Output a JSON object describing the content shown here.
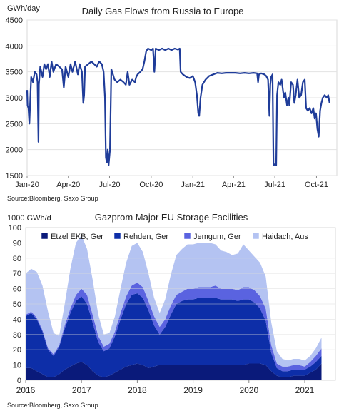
{
  "chart_data": [
    {
      "type": "line",
      "title": "Daily Gas Flows from Russia  to Europe",
      "ylabel": "GWh/day",
      "source": "Source:Bloomberg,  Saxo Group",
      "ylim": [
        1500,
        4500
      ],
      "yticks": [
        "1500",
        "2000",
        "2500",
        "3000",
        "3500",
        "4000",
        "4500"
      ],
      "xlim": [
        "2020-01-01",
        "2021-11-15"
      ],
      "xticks": [
        {
          "date": "2020-01-01",
          "label": "Jan-20"
        },
        {
          "date": "2020-04-01",
          "label": "Apr-20"
        },
        {
          "date": "2020-07-01",
          "label": "Jul-20"
        },
        {
          "date": "2020-10-01",
          "label": "Oct-20"
        },
        {
          "date": "2021-01-01",
          "label": "Jan-21"
        },
        {
          "date": "2021-04-01",
          "label": "Apr-21"
        },
        {
          "date": "2021-07-01",
          "label": "Jul-21"
        },
        {
          "date": "2021-10-01",
          "label": "Oct-21"
        }
      ],
      "grid": true,
      "color": "#1f3c99",
      "points": [
        [
          "2020-01-01",
          3150
        ],
        [
          "2020-01-02",
          2850
        ],
        [
          "2020-01-04",
          2800
        ],
        [
          "2020-01-06",
          2500
        ],
        [
          "2020-01-08",
          2950
        ],
        [
          "2020-01-10",
          3400
        ],
        [
          "2020-01-14",
          3300
        ],
        [
          "2020-01-18",
          3500
        ],
        [
          "2020-01-22",
          3450
        ],
        [
          "2020-01-24",
          3300
        ],
        [
          "2020-01-26",
          2150
        ],
        [
          "2020-01-27",
          3250
        ],
        [
          "2020-01-30",
          3600
        ],
        [
          "2020-02-04",
          3400
        ],
        [
          "2020-02-08",
          3650
        ],
        [
          "2020-02-12",
          3550
        ],
        [
          "2020-02-16",
          3650
        ],
        [
          "2020-02-20",
          3400
        ],
        [
          "2020-02-24",
          3700
        ],
        [
          "2020-02-28",
          3500
        ],
        [
          "2020-03-05",
          3650
        ],
        [
          "2020-03-12",
          3600
        ],
        [
          "2020-03-18",
          3550
        ],
        [
          "2020-03-22",
          3200
        ],
        [
          "2020-03-26",
          3600
        ],
        [
          "2020-04-01",
          3400
        ],
        [
          "2020-04-06",
          3650
        ],
        [
          "2020-04-10",
          3500
        ],
        [
          "2020-04-16",
          3700
        ],
        [
          "2020-04-22",
          3450
        ],
        [
          "2020-04-26",
          3650
        ],
        [
          "2020-05-01",
          3500
        ],
        [
          "2020-05-04",
          2900
        ],
        [
          "2020-05-06",
          3050
        ],
        [
          "2020-05-08",
          3600
        ],
        [
          "2020-05-15",
          3650
        ],
        [
          "2020-05-22",
          3700
        ],
        [
          "2020-05-28",
          3650
        ],
        [
          "2020-06-03",
          3600
        ],
        [
          "2020-06-08",
          3700
        ],
        [
          "2020-06-14",
          3650
        ],
        [
          "2020-06-18",
          3500
        ],
        [
          "2020-06-21",
          3000
        ],
        [
          "2020-06-23",
          1850
        ],
        [
          "2020-06-25",
          1750
        ],
        [
          "2020-06-27",
          2000
        ],
        [
          "2020-06-29",
          1700
        ],
        [
          "2020-07-02",
          2000
        ],
        [
          "2020-07-05",
          3550
        ],
        [
          "2020-07-12",
          3350
        ],
        [
          "2020-07-18",
          3300
        ],
        [
          "2020-07-25",
          3350
        ],
        [
          "2020-08-01",
          3300
        ],
        [
          "2020-08-06",
          3250
        ],
        [
          "2020-08-10",
          3500
        ],
        [
          "2020-08-14",
          3250
        ],
        [
          "2020-08-20",
          3350
        ],
        [
          "2020-08-26",
          3300
        ],
        [
          "2020-08-29",
          3400
        ],
        [
          "2020-09-01",
          3450
        ],
        [
          "2020-09-07",
          3500
        ],
        [
          "2020-09-12",
          3550
        ],
        [
          "2020-09-16",
          3700
        ],
        [
          "2020-09-20",
          3900
        ],
        [
          "2020-09-24",
          3950
        ],
        [
          "2020-10-01",
          3920
        ],
        [
          "2020-10-05",
          3950
        ],
        [
          "2020-10-08",
          3500
        ],
        [
          "2020-10-11",
          3950
        ],
        [
          "2020-10-18",
          3920
        ],
        [
          "2020-10-25",
          3950
        ],
        [
          "2020-11-01",
          3920
        ],
        [
          "2020-11-08",
          3950
        ],
        [
          "2020-11-15",
          3920
        ],
        [
          "2020-11-22",
          3950
        ],
        [
          "2020-11-29",
          3930
        ],
        [
          "2020-12-03",
          3950
        ],
        [
          "2020-12-05",
          3500
        ],
        [
          "2020-12-10",
          3450
        ],
        [
          "2020-12-18",
          3400
        ],
        [
          "2020-12-25",
          3380
        ],
        [
          "2021-01-01",
          3420
        ],
        [
          "2021-01-06",
          3300
        ],
        [
          "2021-01-10",
          3050
        ],
        [
          "2021-01-13",
          2700
        ],
        [
          "2021-01-15",
          2650
        ],
        [
          "2021-01-18",
          3000
        ],
        [
          "2021-01-22",
          3250
        ],
        [
          "2021-01-29",
          3350
        ],
        [
          "2021-02-06",
          3420
        ],
        [
          "2021-02-15",
          3450
        ],
        [
          "2021-02-24",
          3480
        ],
        [
          "2021-03-06",
          3470
        ],
        [
          "2021-03-15",
          3480
        ],
        [
          "2021-03-25",
          3480
        ],
        [
          "2021-04-05",
          3480
        ],
        [
          "2021-04-15",
          3470
        ],
        [
          "2021-04-25",
          3480
        ],
        [
          "2021-05-05",
          3470
        ],
        [
          "2021-05-15",
          3480
        ],
        [
          "2021-05-23",
          3470
        ],
        [
          "2021-05-25",
          3300
        ],
        [
          "2021-05-27",
          3450
        ],
        [
          "2021-06-01",
          3470
        ],
        [
          "2021-06-08",
          3450
        ],
        [
          "2021-06-12",
          3420
        ],
        [
          "2021-06-16",
          3350
        ],
        [
          "2021-06-19",
          2650
        ],
        [
          "2021-06-21",
          3250
        ],
        [
          "2021-06-23",
          3400
        ],
        [
          "2021-06-26",
          3450
        ],
        [
          "2021-06-28",
          1700
        ],
        [
          "2021-07-02",
          1720
        ],
        [
          "2021-07-04",
          1700
        ],
        [
          "2021-07-06",
          3050
        ],
        [
          "2021-07-09",
          3300
        ],
        [
          "2021-07-13",
          3250
        ],
        [
          "2021-07-16",
          3350
        ],
        [
          "2021-07-21",
          3000
        ],
        [
          "2021-07-24",
          3100
        ],
        [
          "2021-07-28",
          2850
        ],
        [
          "2021-07-31",
          3000
        ],
        [
          "2021-08-02",
          2850
        ],
        [
          "2021-08-06",
          3300
        ],
        [
          "2021-08-10",
          3250
        ],
        [
          "2021-08-13",
          2900
        ],
        [
          "2021-08-16",
          3050
        ],
        [
          "2021-08-20",
          3350
        ],
        [
          "2021-08-24",
          3000
        ],
        [
          "2021-08-28",
          3050
        ],
        [
          "2021-09-01",
          3300
        ],
        [
          "2021-09-05",
          3350
        ],
        [
          "2021-09-08",
          2800
        ],
        [
          "2021-09-12",
          2750
        ],
        [
          "2021-09-16",
          2800
        ],
        [
          "2021-09-20",
          2700
        ],
        [
          "2021-09-24",
          2800
        ],
        [
          "2021-09-27",
          2600
        ],
        [
          "2021-09-30",
          2700
        ],
        [
          "2021-10-03",
          2400
        ],
        [
          "2021-10-06",
          2250
        ],
        [
          "2021-10-09",
          2750
        ],
        [
          "2021-10-12",
          2900
        ],
        [
          "2021-10-15",
          3000
        ],
        [
          "2021-10-19",
          3050
        ],
        [
          "2021-10-24",
          3000
        ],
        [
          "2021-10-27",
          3050
        ],
        [
          "2021-10-30",
          2900
        ]
      ]
    },
    {
      "type": "area",
      "stacked": true,
      "title": "Gazprom  Major EU Storage Facilities",
      "ylabel": "1000 GWh/d",
      "source": "Source:Bloomberg,  Saxo Group",
      "ylim": [
        0,
        100
      ],
      "yticks": [
        "0",
        "10",
        "20",
        "30",
        "40",
        "50",
        "60",
        "70",
        "80",
        "90",
        "100"
      ],
      "xlim": [
        2016.0,
        2021.55
      ],
      "xticks": [
        "2016",
        "2017",
        "2018",
        "2019",
        "2020",
        "2021"
      ],
      "grid": true,
      "legend_position": "top",
      "x": [
        2016.0,
        2016.1,
        2016.2,
        2016.3,
        2016.4,
        2016.5,
        2016.6,
        2016.7,
        2016.8,
        2016.9,
        2017.0,
        2017.1,
        2017.2,
        2017.3,
        2017.4,
        2017.5,
        2017.6,
        2017.7,
        2017.8,
        2017.9,
        2018.0,
        2018.1,
        2018.2,
        2018.3,
        2018.4,
        2018.5,
        2018.6,
        2018.7,
        2018.8,
        2018.9,
        2019.0,
        2019.1,
        2019.2,
        2019.3,
        2019.4,
        2019.5,
        2019.6,
        2019.7,
        2019.8,
        2019.9,
        2020.0,
        2020.1,
        2020.2,
        2020.3,
        2020.4,
        2020.5,
        2020.6,
        2020.7,
        2020.8,
        2020.9,
        2021.0,
        2021.1,
        2021.2,
        2021.3
      ],
      "series": [
        {
          "name": "Etzel EKB, Ger",
          "color": "#0a1a7a",
          "values": [
            8,
            8,
            6,
            4,
            2,
            2,
            4,
            7,
            9,
            11,
            12,
            10,
            6,
            3,
            2,
            3,
            5,
            7,
            9,
            10,
            11,
            10,
            8,
            9,
            10,
            10,
            10,
            10,
            10,
            10,
            10,
            10,
            10,
            10,
            10,
            10,
            10,
            10,
            10,
            10,
            11,
            11,
            11,
            10,
            6,
            3,
            2,
            2,
            3,
            3,
            3,
            5,
            7,
            11
          ]
        },
        {
          "name": "Rehden, Ger",
          "color": "#0d2ea8",
          "values": [
            34,
            36,
            34,
            28,
            18,
            14,
            18,
            27,
            35,
            41,
            43,
            40,
            32,
            22,
            17,
            18,
            24,
            33,
            41,
            46,
            46,
            44,
            38,
            27,
            20,
            25,
            33,
            40,
            42,
            43,
            43,
            44,
            44,
            44,
            44,
            43,
            43,
            43,
            42,
            43,
            42,
            40,
            36,
            29,
            12,
            5,
            4,
            4,
            4,
            4,
            4,
            4,
            5,
            5
          ]
        },
        {
          "name": "Jemgum, Ger",
          "color": "#5a63e0",
          "values": [
            1,
            1,
            1,
            1,
            1,
            1,
            1,
            2,
            3,
            4,
            5,
            6,
            5,
            4,
            3,
            3,
            3,
            4,
            5,
            6,
            7,
            7,
            6,
            6,
            5,
            5,
            6,
            6,
            6,
            7,
            7,
            7,
            7,
            7,
            8,
            7,
            7,
            7,
            7,
            8,
            8,
            8,
            8,
            8,
            5,
            3,
            3,
            3,
            3,
            3,
            2,
            3,
            4,
            5
          ]
        },
        {
          "name": "Haidach, Aus",
          "color": "#b4c3f2",
          "values": [
            27,
            28,
            30,
            29,
            24,
            14,
            6,
            14,
            26,
            34,
            35,
            30,
            23,
            14,
            8,
            7,
            10,
            16,
            22,
            26,
            26,
            23,
            18,
            12,
            9,
            13,
            20,
            26,
            28,
            29,
            29,
            29,
            29,
            29,
            27,
            25,
            24,
            22,
            24,
            28,
            24,
            22,
            22,
            21,
            15,
            8,
            5,
            4,
            4,
            4,
            4,
            4,
            5,
            7
          ]
        }
      ]
    }
  ]
}
